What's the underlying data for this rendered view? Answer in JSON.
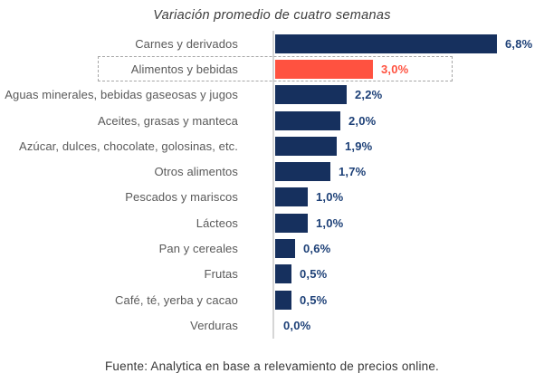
{
  "title": "Variación promedio de cuatro semanas",
  "footer": "Fuente: Analytica en base a relevamiento de precios online.",
  "colors": {
    "bar": "#16305e",
    "highlight": "#ff5240",
    "value_label": "#1d4077",
    "highlight_value_label": "#ff5240",
    "category_label": "#595959",
    "axis_line": "#d6d6d6",
    "highlight_box_border": "#a6a6a6"
  },
  "chart_data": {
    "type": "bar",
    "orientation": "horizontal",
    "title": "Variación promedio de cuatro semanas",
    "xlabel": "",
    "ylabel": "",
    "xlim": [
      0,
      6.8
    ],
    "grid": false,
    "legend": false,
    "categories": [
      "Carnes y derivados",
      "Alimentos y bebidas",
      "Aguas minerales, bebidas gaseosas y jugos",
      "Aceites, grasas y manteca",
      "Azúcar, dulces, chocolate, golosinas, etc.",
      "Otros alimentos",
      "Pescados y mariscos",
      "Lácteos",
      "Pan y cereales",
      "Frutas",
      "Café, té, yerba y cacao",
      "Verduras"
    ],
    "values": [
      6.8,
      3.0,
      2.2,
      2.0,
      1.9,
      1.7,
      1.0,
      1.0,
      0.6,
      0.5,
      0.5,
      0.0
    ],
    "value_labels": [
      "6,8%",
      "3,0%",
      "2,2%",
      "2,0%",
      "1,9%",
      "1,7%",
      "1,0%",
      "1,0%",
      "0,6%",
      "0,5%",
      "0,5%",
      "0,0%"
    ],
    "highlighted_category": "Alimentos y bebidas",
    "highlight_index": 1,
    "annotation": "dashed box around highlighted row"
  }
}
